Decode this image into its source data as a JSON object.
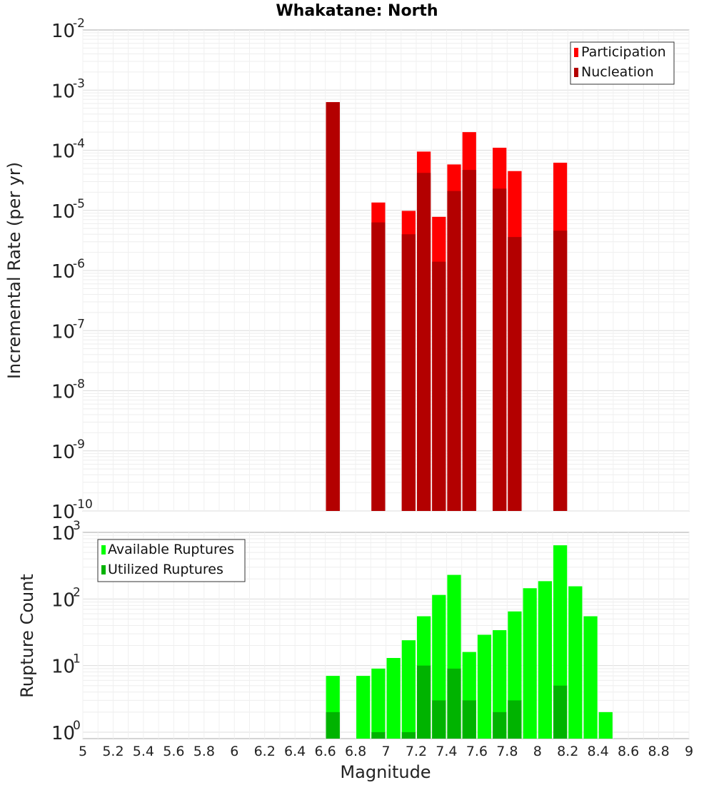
{
  "title": "Whakatane: North",
  "colors": {
    "participation": "#ff0000",
    "nucleation": "#b30000",
    "available": "#00ff00",
    "utilized": "#00b300"
  },
  "chart_data": [
    {
      "type": "bar",
      "scale": "log",
      "ylabel": "Incremental Rate (per yr)",
      "ylim": [
        1e-10,
        0.01
      ],
      "y_ticks": [
        {
          "base": "10",
          "exp": "-2",
          "value": 0.01
        },
        {
          "base": "10",
          "exp": "-3",
          "value": 0.001
        },
        {
          "base": "10",
          "exp": "-4",
          "value": 0.0001
        },
        {
          "base": "10",
          "exp": "-5",
          "value": 1e-05
        },
        {
          "base": "10",
          "exp": "-6",
          "value": 1e-06
        },
        {
          "base": "10",
          "exp": "-7",
          "value": 1e-07
        },
        {
          "base": "10",
          "exp": "-8",
          "value": 1e-08
        },
        {
          "base": "10",
          "exp": "-9",
          "value": 1e-09
        },
        {
          "base": "10",
          "exp": "-10",
          "value": 1e-10
        }
      ],
      "legend_position": "top-right",
      "series": [
        {
          "name": "Participation",
          "color_key": "participation",
          "points": [
            {
              "x": 6.65,
              "y": 0.00063
            },
            {
              "x": 6.95,
              "y": 1.35e-05
            },
            {
              "x": 7.15,
              "y": 9.8e-06
            },
            {
              "x": 7.25,
              "y": 9.5e-05
            },
            {
              "x": 7.35,
              "y": 7.8e-06
            },
            {
              "x": 7.45,
              "y": 5.8e-05
            },
            {
              "x": 7.55,
              "y": 0.0002
            },
            {
              "x": 7.75,
              "y": 0.00011
            },
            {
              "x": 7.85,
              "y": 4.5e-05
            },
            {
              "x": 8.15,
              "y": 6.2e-05
            }
          ]
        },
        {
          "name": "Nucleation",
          "color_key": "nucleation",
          "points": [
            {
              "x": 6.65,
              "y": 0.00063
            },
            {
              "x": 6.95,
              "y": 6.3e-06
            },
            {
              "x": 7.15,
              "y": 4e-06
            },
            {
              "x": 7.25,
              "y": 4.2e-05
            },
            {
              "x": 7.35,
              "y": 1.4e-06
            },
            {
              "x": 7.45,
              "y": 2.1e-05
            },
            {
              "x": 7.55,
              "y": 4.7e-05
            },
            {
              "x": 7.75,
              "y": 2.3e-05
            },
            {
              "x": 7.85,
              "y": 3.6e-06
            },
            {
              "x": 8.15,
              "y": 4.6e-06
            }
          ]
        }
      ]
    },
    {
      "type": "bar",
      "scale": "log",
      "ylabel": "Rupture Count",
      "xlabel": "Magnitude",
      "ylim": [
        0.8,
        1000
      ],
      "xlim": [
        5,
        9
      ],
      "y_ticks": [
        {
          "base": "10",
          "exp": "3",
          "value": 1000
        },
        {
          "base": "10",
          "exp": "2",
          "value": 100
        },
        {
          "base": "10",
          "exp": "1",
          "value": 10
        },
        {
          "base": "10",
          "exp": "0",
          "value": 1
        }
      ],
      "x_ticks": [
        "5",
        "5.2",
        "5.4",
        "5.6",
        "5.8",
        "6",
        "6.2",
        "6.4",
        "6.6",
        "6.8",
        "7",
        "7.2",
        "7.4",
        "7.6",
        "7.8",
        "8",
        "8.2",
        "8.4",
        "8.6",
        "8.8",
        "9"
      ],
      "legend_position": "top-left",
      "series": [
        {
          "name": "Available Ruptures",
          "color_key": "available",
          "points": [
            {
              "x": 6.65,
              "y": 7
            },
            {
              "x": 6.85,
              "y": 7
            },
            {
              "x": 6.95,
              "y": 9
            },
            {
              "x": 7.05,
              "y": 13
            },
            {
              "x": 7.15,
              "y": 24
            },
            {
              "x": 7.25,
              "y": 55
            },
            {
              "x": 7.35,
              "y": 115
            },
            {
              "x": 7.45,
              "y": 230
            },
            {
              "x": 7.55,
              "y": 16
            },
            {
              "x": 7.65,
              "y": 29
            },
            {
              "x": 7.75,
              "y": 34
            },
            {
              "x": 7.85,
              "y": 65
            },
            {
              "x": 7.95,
              "y": 145
            },
            {
              "x": 8.05,
              "y": 185
            },
            {
              "x": 8.15,
              "y": 640
            },
            {
              "x": 8.25,
              "y": 155
            },
            {
              "x": 8.35,
              "y": 55
            },
            {
              "x": 8.45,
              "y": 2
            }
          ]
        },
        {
          "name": "Utilized Ruptures",
          "color_key": "utilized",
          "points": [
            {
              "x": 6.65,
              "y": 2
            },
            {
              "x": 6.95,
              "y": 1
            },
            {
              "x": 7.15,
              "y": 1
            },
            {
              "x": 7.25,
              "y": 10
            },
            {
              "x": 7.35,
              "y": 3
            },
            {
              "x": 7.45,
              "y": 9
            },
            {
              "x": 7.55,
              "y": 3
            },
            {
              "x": 7.75,
              "y": 2
            },
            {
              "x": 7.85,
              "y": 3
            },
            {
              "x": 8.15,
              "y": 5
            }
          ]
        }
      ]
    }
  ]
}
